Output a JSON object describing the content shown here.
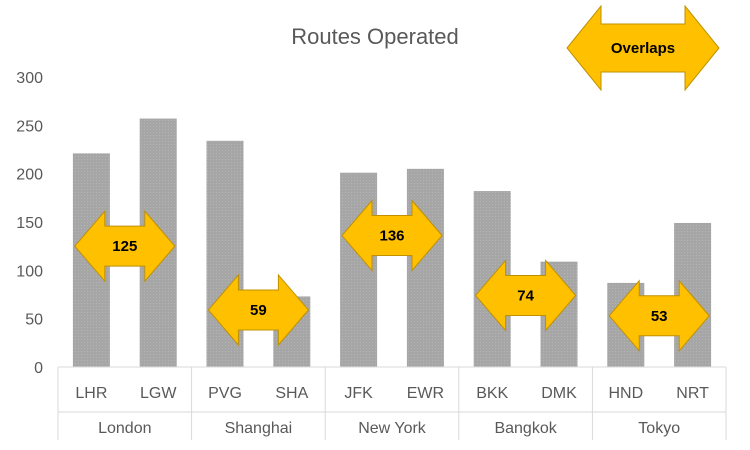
{
  "chart_data": {
    "type": "bar",
    "title": "Routes Operated",
    "ylim": [
      0,
      300
    ],
    "yticks": [
      0,
      50,
      100,
      150,
      200,
      250,
      300
    ],
    "gridlines": false,
    "groups": [
      {
        "name": "London",
        "airports": [
          {
            "code": "LHR",
            "value": 221
          },
          {
            "code": "LGW",
            "value": 257
          }
        ],
        "overlap": 125,
        "overlap_label": "125"
      },
      {
        "name": "Shanghai",
        "airports": [
          {
            "code": "PVG",
            "value": 234
          },
          {
            "code": "SHA",
            "value": 73
          }
        ],
        "overlap": 59,
        "overlap_label": "59"
      },
      {
        "name": "New York",
        "airports": [
          {
            "code": "JFK",
            "value": 201
          },
          {
            "code": "EWR",
            "value": 205
          }
        ],
        "overlap": 136,
        "overlap_label": "136"
      },
      {
        "name": "Bangkok",
        "airports": [
          {
            "code": "BKK",
            "value": 182
          },
          {
            "code": "DMK",
            "value": 109
          }
        ],
        "overlap": 74,
        "overlap_label": "74"
      },
      {
        "name": "Tokyo",
        "airports": [
          {
            "code": "HND",
            "value": 87
          },
          {
            "code": "NRT",
            "value": 149
          }
        ],
        "overlap": 53,
        "overlap_label": "53"
      }
    ],
    "legend_callout": "Overlaps",
    "colors": {
      "bar": "#a6a6a6",
      "bar_pattern": "#9a9a9a",
      "arrow_fill": "#ffc000",
      "arrow_stroke": "#bf9000",
      "axis": "#d9d9d9",
      "text": "#595959"
    }
  }
}
